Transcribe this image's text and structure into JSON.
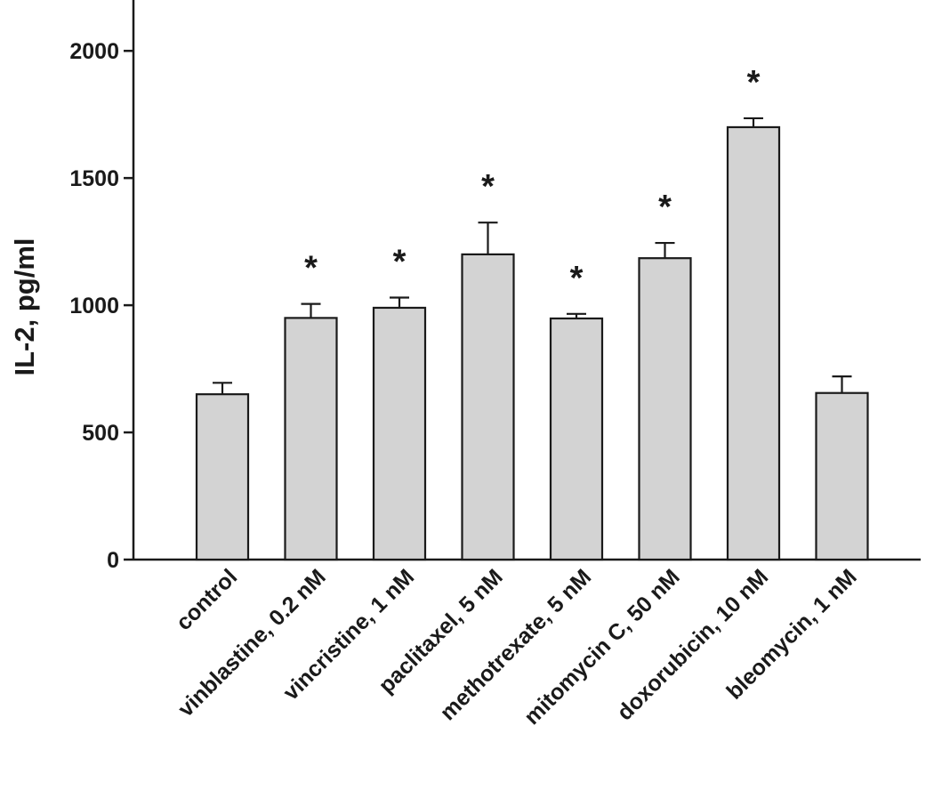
{
  "chart_data": {
    "type": "bar",
    "ylabel": "IL-2, pg/ml",
    "xlabel": "",
    "title": "",
    "ylim": [
      0,
      2200
    ],
    "yticks": [
      0,
      500,
      1000,
      1500,
      2000
    ],
    "grid": false,
    "categories": [
      "control",
      "vinblastine, 0.2 nM",
      "vincristine, 1 nM",
      "paclitaxel, 5 nM",
      "methotrexate, 5 nM",
      "mitomycin C, 50 nM",
      "doxorubicin, 10 nM",
      "bleomycin, 1 nM"
    ],
    "values": [
      650,
      950,
      990,
      1200,
      948,
      1185,
      1700,
      655
    ],
    "errors": [
      45,
      55,
      40,
      125,
      18,
      60,
      35,
      65
    ],
    "significance": [
      "",
      "*",
      "*",
      "*",
      "*",
      "*",
      "*",
      ""
    ],
    "colors": {
      "bar_fill": "#d3d3d3",
      "bar_stroke": "#1a1a1a",
      "axis": "#1a1a1a"
    }
  }
}
